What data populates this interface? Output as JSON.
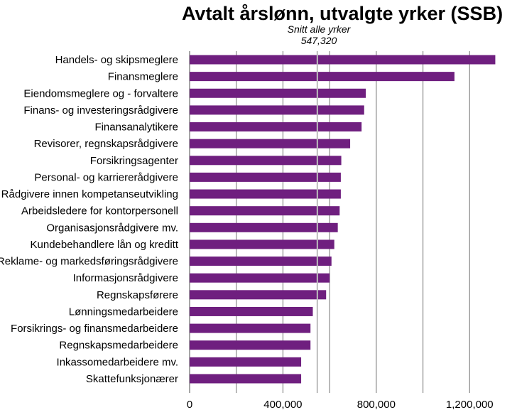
{
  "chart_data": {
    "type": "bar",
    "orientation": "horizontal",
    "title": "Avtalt årslønn, utvalgte yrker (SSB)",
    "annotation": {
      "label": "Snitt alle yrker",
      "value_text": "547,320",
      "value": 547320
    },
    "categories": [
      "Handels- og skipsmeglere",
      "Finansmeglere",
      "Eiendomsmeglere og - forvaltere",
      "Finans- og investeringsrådgivere",
      "Finansanalytikere",
      "Revisorer, regnskapsrådgivere",
      "Forsikringsagenter",
      "Personal- og karriererådgivere",
      "Rådgivere innen kompetanseutvikling",
      "Arbeidsledere for kontorpersonell",
      "Organisasjonsrådgivere mv.",
      "Kundebehandlere lån og kreditt",
      "Reklame- og markedsføringsrådgivere",
      "Informasjonsrådgivere",
      "Regnskapsførere",
      "Lønningsmedarbeidere",
      "Forsikrings- og finansmedarbeidere",
      "Regnskapsmedarbeidere",
      "Inkassomedarbeidere mv.",
      "Skattefunksjonærer"
    ],
    "values": [
      1310000,
      1135000,
      755000,
      748000,
      737000,
      688000,
      650000,
      648000,
      648000,
      643000,
      635000,
      620000,
      608000,
      600000,
      585000,
      528000,
      518000,
      518000,
      478000,
      478000
    ],
    "xlim": [
      0,
      1400000
    ],
    "xticks": [
      0,
      400000,
      800000,
      1200000
    ],
    "xtick_labels": [
      "0",
      "400,000",
      "800,000",
      "1,200,000"
    ],
    "grid_x": true,
    "bar_color": "#6f1f7f",
    "grid_color": "#8a8a8a",
    "avg_line_color": "#bdbdbd"
  }
}
